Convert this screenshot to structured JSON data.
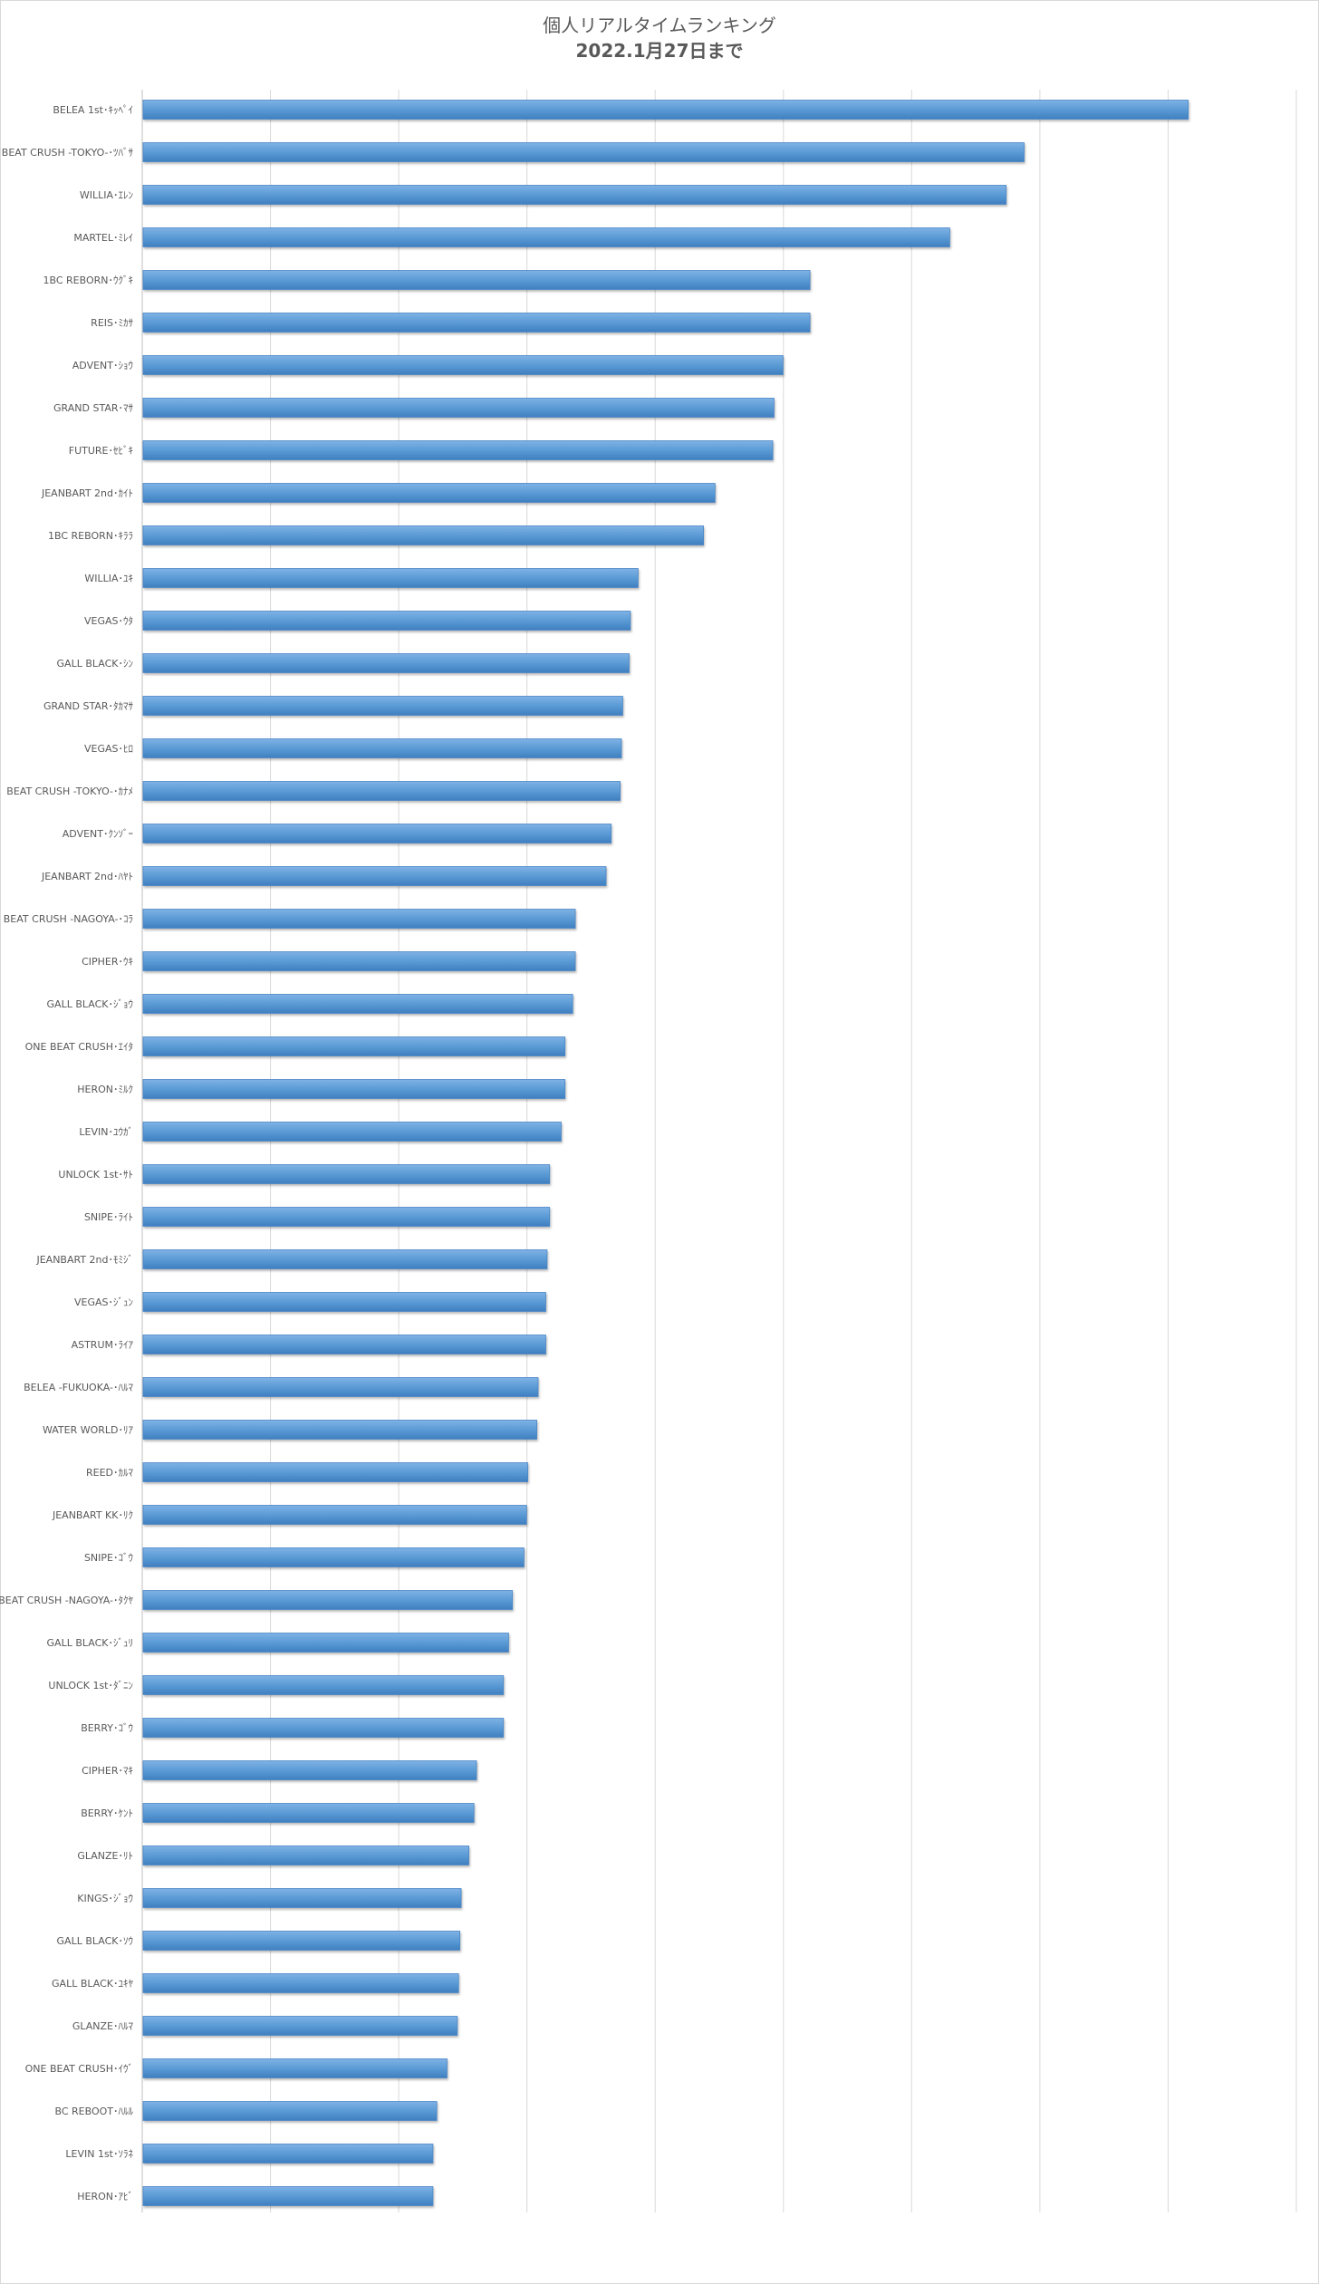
{
  "chart_data": {
    "type": "bar",
    "orientation": "horizontal",
    "title": "個人リアルタイムランキング",
    "subtitle": "2022.1月27日まで",
    "xlim": [
      0,
      9
    ],
    "grid": true,
    "legend": "none",
    "bar_color": "#5b9bd5",
    "categories": [
      "BELEA 1st･ｷｯﾍﾟｲ",
      "BEAT CRUSH -TOKYO-･ﾂﾊﾞｻ",
      "WILLIA･ｴﾚﾝ",
      "MARTEL･ﾐﾚｲ",
      "1BC REBORN･ｳｸﾞｷ",
      "REIS･ﾐｶｻ",
      "ADVENT･ｼｮｳ",
      "GRAND STAR･ﾏｻ",
      "FUTURE･ｾﾋﾞｷ",
      "JEANBART 2nd･ｶｲﾄ",
      "1BC REBORN･ｷﾗﾗ",
      "WILLIA･ﾕｷ",
      "VEGAS･ｳﾀ",
      "GALL BLACK･ｼﾝ",
      "GRAND STAR･ﾀｶﾏｻ",
      "VEGAS･ﾋﾛ",
      "BEAT CRUSH -TOKYO-･ｶﾅﾒ",
      "ADVENT･ｸﾝｿﾞｰ",
      "JEANBART 2nd･ﾊﾔﾄ",
      "BEAT CRUSH -NAGOYA-･ｺﾗ",
      "CIPHER･ｳｷ",
      "GALL BLACK･ｼﾞｮｳ",
      "ONE BEAT CRUSH･ｴｲﾀ",
      "HERON･ﾐﾙｸ",
      "LEVIN･ﾕｳｶﾞ",
      "UNLOCK 1st･ｻﾄ",
      "SNIPE･ﾗｲﾄ",
      "JEANBART 2nd･ﾓﾐｼﾞ",
      "VEGAS･ｼﾞｭﾝ",
      "ASTRUM･ﾗｲｱ",
      "BELEA -FUKUOKA-･ﾊﾙﾏ",
      "WATER WORLD･ﾘｱ",
      "REED･ｶﾙﾏ",
      "JEANBART KK･ﾘｸ",
      "SNIPE･ｺﾞｳ",
      "BEAT CRUSH -NAGOYA-･ﾀｸﾔ",
      "GALL BLACK･ｼﾞｭﾘ",
      "UNLOCK 1st･ﾀﾞﾆﾝ",
      "BERRY･ｺﾞｳ",
      "CIPHER･ﾏｷ",
      "BERRY･ｹﾝﾄ",
      "GLANZE･ﾘﾄ",
      "KINGS･ｼﾞｮｳ",
      "GALL BLACK･ｿｳ",
      "GALL BLACK･ﾕｷﾔ",
      "GLANZE･ﾊﾙﾏ",
      "ONE BEAT CRUSH･ｲｳﾞ",
      "BC REBOOT･ﾊﾙﾙ",
      "LEVIN 1st･ｿﾗﾈ",
      "HERON･ｱﾋﾞ"
    ],
    "values": [
      8.15,
      6.87,
      6.73,
      6.29,
      5.2,
      5.2,
      4.99,
      4.92,
      4.91,
      4.46,
      4.37,
      3.86,
      3.8,
      3.79,
      3.74,
      3.73,
      3.72,
      3.65,
      3.61,
      3.37,
      3.37,
      3.35,
      3.29,
      3.29,
      3.26,
      3.17,
      3.17,
      3.15,
      3.14,
      3.14,
      3.08,
      3.07,
      3.0,
      2.99,
      2.97,
      2.88,
      2.85,
      2.81,
      2.81,
      2.6,
      2.58,
      2.54,
      2.48,
      2.47,
      2.46,
      2.45,
      2.37,
      2.29,
      2.26,
      2.26
    ]
  }
}
